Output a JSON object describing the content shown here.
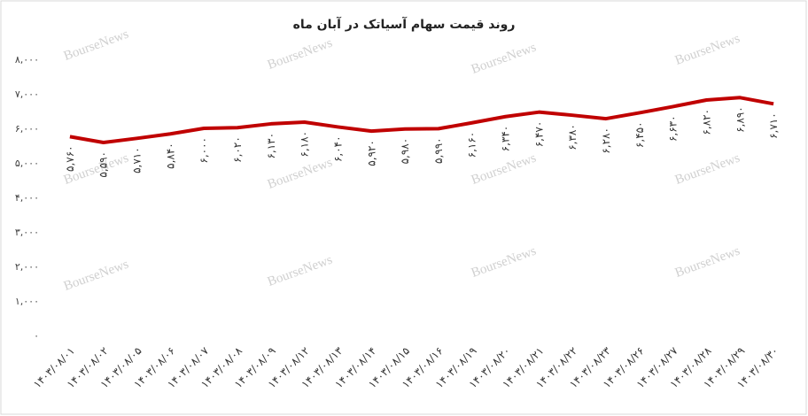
{
  "chart_data": {
    "type": "line",
    "title": "روند قیمت سهام آسیاتک در آبان ماه",
    "watermark": "BourseNews",
    "categories": [
      "۱۴۰۳/۰۸/۰۱",
      "۱۴۰۳/۰۸/۰۲",
      "۱۴۰۳/۰۸/۰۵",
      "۱۴۰۳/۰۸/۰۶",
      "۱۴۰۳/۰۸/۰۷",
      "۱۴۰۳/۰۸/۰۸",
      "۱۴۰۳/۰۸/۰۹",
      "۱۴۰۳/۰۸/۱۲",
      "۱۴۰۳/۰۸/۱۳",
      "۱۴۰۳/۰۸/۱۴",
      "۱۴۰۳/۰۸/۱۵",
      "۱۴۰۳/۰۸/۱۶",
      "۱۴۰۳/۰۸/۱۹",
      "۱۴۰۳/۰۸/۲۰",
      "۱۴۰۳/۰۸/۲۱",
      "۱۴۰۳/۰۸/۲۲",
      "۱۴۰۳/۰۸/۲۳",
      "۱۴۰۳/۰۸/۲۶",
      "۱۴۰۳/۰۸/۲۷",
      "۱۴۰۳/۰۸/۲۸",
      "۱۴۰۳/۰۸/۲۹",
      "۱۴۰۳/۰۸/۳۰"
    ],
    "values": [
      5760,
      5590,
      5710,
      5840,
      6000,
      6020,
      6130,
      6180,
      6040,
      5920,
      5980,
      5990,
      6160,
      6340,
      6470,
      6380,
      6280,
      6450,
      6630,
      6820,
      6890,
      6710
    ],
    "value_labels": [
      "۵,۷۶۰",
      "۵,۵۹۰",
      "۵,۷۱۰",
      "۵,۸۴۰",
      "۶,۰۰۰",
      "۶,۰۲۰",
      "۶,۱۳۰",
      "۶,۱۸۰",
      "۶,۰۴۰",
      "۵,۹۲۰",
      "۵,۹۸۰",
      "۵,۹۹۰",
      "۶,۱۶۰",
      "۶,۳۴۰",
      "۶,۴۷۰",
      "۶,۳۸۰",
      "۶,۲۸۰",
      "۶,۴۵۰",
      "۶,۶۳۰",
      "۶,۸۲۰",
      "۶,۸۹۰",
      "۶,۷۱۰"
    ],
    "color": "#c00000",
    "ylim": [
      0,
      8000
    ],
    "yticks": [
      {
        "value": 0,
        "label": "۰"
      },
      {
        "value": 1000,
        "label": "۱,۰۰۰"
      },
      {
        "value": 2000,
        "label": "۲,۰۰۰"
      },
      {
        "value": 3000,
        "label": "۳,۰۰۰"
      },
      {
        "value": 4000,
        "label": "۴,۰۰۰"
      },
      {
        "value": 5000,
        "label": "۵,۰۰۰"
      },
      {
        "value": 6000,
        "label": "۶,۰۰۰"
      },
      {
        "value": 7000,
        "label": "۷,۰۰۰"
      },
      {
        "value": 8000,
        "label": "۸,۰۰۰"
      }
    ],
    "grid": false
  }
}
